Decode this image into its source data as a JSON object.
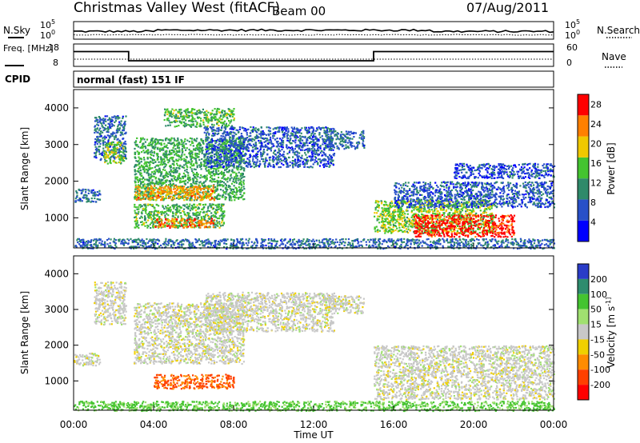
{
  "header": {
    "title": "Christmas Valley West (fitACF)",
    "beam": "Beam 00",
    "date": "07/Aug/2011"
  },
  "chart_data": [
    {
      "type": "line",
      "panel": "noise",
      "left_label": "N.Sky",
      "right_label": "N.Search",
      "left_ticks": [
        "10^5",
        "10^0"
      ],
      "right_ticks": [
        "10^5",
        "10^0"
      ],
      "scale": "log",
      "ylim": [
        1,
        100000
      ]
    },
    {
      "type": "line",
      "panel": "frequency",
      "left_label": "Freq. [MHz]",
      "right_label": "Nave",
      "left_ticks": [
        18,
        8
      ],
      "right_ticks": [
        60,
        0
      ],
      "ylim": [
        8,
        18
      ],
      "series": [
        {
          "x": [
            0,
            2.75,
            2.75,
            15.0,
            15.0,
            24
          ],
          "y": [
            15.3,
            15.3,
            10.5,
            10.5,
            15.3,
            15.3
          ]
        }
      ]
    },
    {
      "type": "table",
      "panel": "cpid",
      "label": "CPID",
      "value": "normal (fast) 151 IF"
    },
    {
      "type": "heatmap",
      "panel": "power",
      "ylabel": "Slant Range [km]",
      "yticks": [
        1000,
        2000,
        3000,
        4000
      ],
      "ylim": [
        180,
        4500
      ],
      "xlim": [
        0,
        24
      ],
      "colorbar": {
        "label": "Power [dB]",
        "ticks": [
          4,
          8,
          12,
          16,
          20,
          24,
          28
        ],
        "range": [
          0,
          30
        ],
        "colors": [
          "#0000ff",
          "#2850c8",
          "#2f8a6a",
          "#44c430",
          "#f0c800",
          "#ff8000",
          "#ff0000"
        ]
      },
      "regions": [
        {
          "t": [
            0.0,
            1.3
          ],
          "r": [
            1450,
            1800
          ],
          "level": 8
        },
        {
          "t": [
            1.0,
            2.6
          ],
          "r": [
            2600,
            3800
          ],
          "level": 8
        },
        {
          "t": [
            1.5,
            2.5
          ],
          "r": [
            2500,
            3100
          ],
          "level": 16
        },
        {
          "t": [
            3.0,
            8.5
          ],
          "r": [
            1500,
            3200
          ],
          "level": 13
        },
        {
          "t": [
            3.0,
            7.0
          ],
          "r": [
            1500,
            1900
          ],
          "level": 22
        },
        {
          "t": [
            3.0,
            7.5
          ],
          "r": [
            750,
            1400
          ],
          "level": 14
        },
        {
          "t": [
            4.0,
            7.0
          ],
          "r": [
            750,
            1000
          ],
          "level": 24
        },
        {
          "t": [
            4.5,
            8.0
          ],
          "r": [
            3500,
            4000
          ],
          "level": 14
        },
        {
          "t": [
            6.5,
            13.0
          ],
          "r": [
            2400,
            3500
          ],
          "level": 7
        },
        {
          "t": [
            12.5,
            14.5
          ],
          "r": [
            2900,
            3400
          ],
          "level": 8
        },
        {
          "t": [
            15.0,
            21.0
          ],
          "r": [
            600,
            1500
          ],
          "level": 16
        },
        {
          "t": [
            17.0,
            22.0
          ],
          "r": [
            500,
            1100
          ],
          "level": 28
        },
        {
          "t": [
            16.0,
            24.0
          ],
          "r": [
            1300,
            2000
          ],
          "level": 7
        },
        {
          "t": [
            19.0,
            24.0
          ],
          "r": [
            2100,
            2500
          ],
          "level": 6
        },
        {
          "t": [
            0.0,
            24.0
          ],
          "r": [
            180,
            450
          ],
          "level": 8
        }
      ]
    },
    {
      "type": "heatmap",
      "panel": "velocity",
      "ylabel": "Slant Range [km]",
      "yticks": [
        1000,
        2000,
        3000,
        4000
      ],
      "ylim": [
        180,
        4500
      ],
      "xlim": [
        0,
        24
      ],
      "xlabel": "Time UT",
      "xticks": [
        "00:00",
        "04:00",
        "08:00",
        "12:00",
        "16:00",
        "20:00",
        "00:00"
      ],
      "colorbar": {
        "label": "Velocity [m s^-1]",
        "ticks": [
          200,
          100,
          50,
          15,
          -15,
          -50,
          -100,
          -200
        ],
        "colors": [
          "#2a3cc8",
          "#2e8c6e",
          "#44c430",
          "#a0e070",
          "#c8c8c8",
          "#f0d000",
          "#ff8c00",
          "#ff4000",
          "#ff0000"
        ]
      },
      "regions": [
        {
          "t": [
            0.0,
            1.3
          ],
          "r": [
            1450,
            1800
          ],
          "v": 0
        },
        {
          "t": [
            1.0,
            2.6
          ],
          "r": [
            2600,
            3800
          ],
          "v": 0
        },
        {
          "t": [
            3.0,
            8.5
          ],
          "r": [
            1500,
            3200
          ],
          "v": 0
        },
        {
          "t": [
            4.0,
            8.0
          ],
          "r": [
            800,
            1200
          ],
          "v": -80
        },
        {
          "t": [
            6.5,
            13.0
          ],
          "r": [
            2400,
            3500
          ],
          "v": 0
        },
        {
          "t": [
            12.5,
            14.5
          ],
          "r": [
            2900,
            3400
          ],
          "v": 0
        },
        {
          "t": [
            15.0,
            24.0
          ],
          "r": [
            500,
            2000
          ],
          "v": 0
        },
        {
          "t": [
            0.0,
            24.0
          ],
          "r": [
            180,
            450
          ],
          "v": 40
        }
      ]
    }
  ]
}
